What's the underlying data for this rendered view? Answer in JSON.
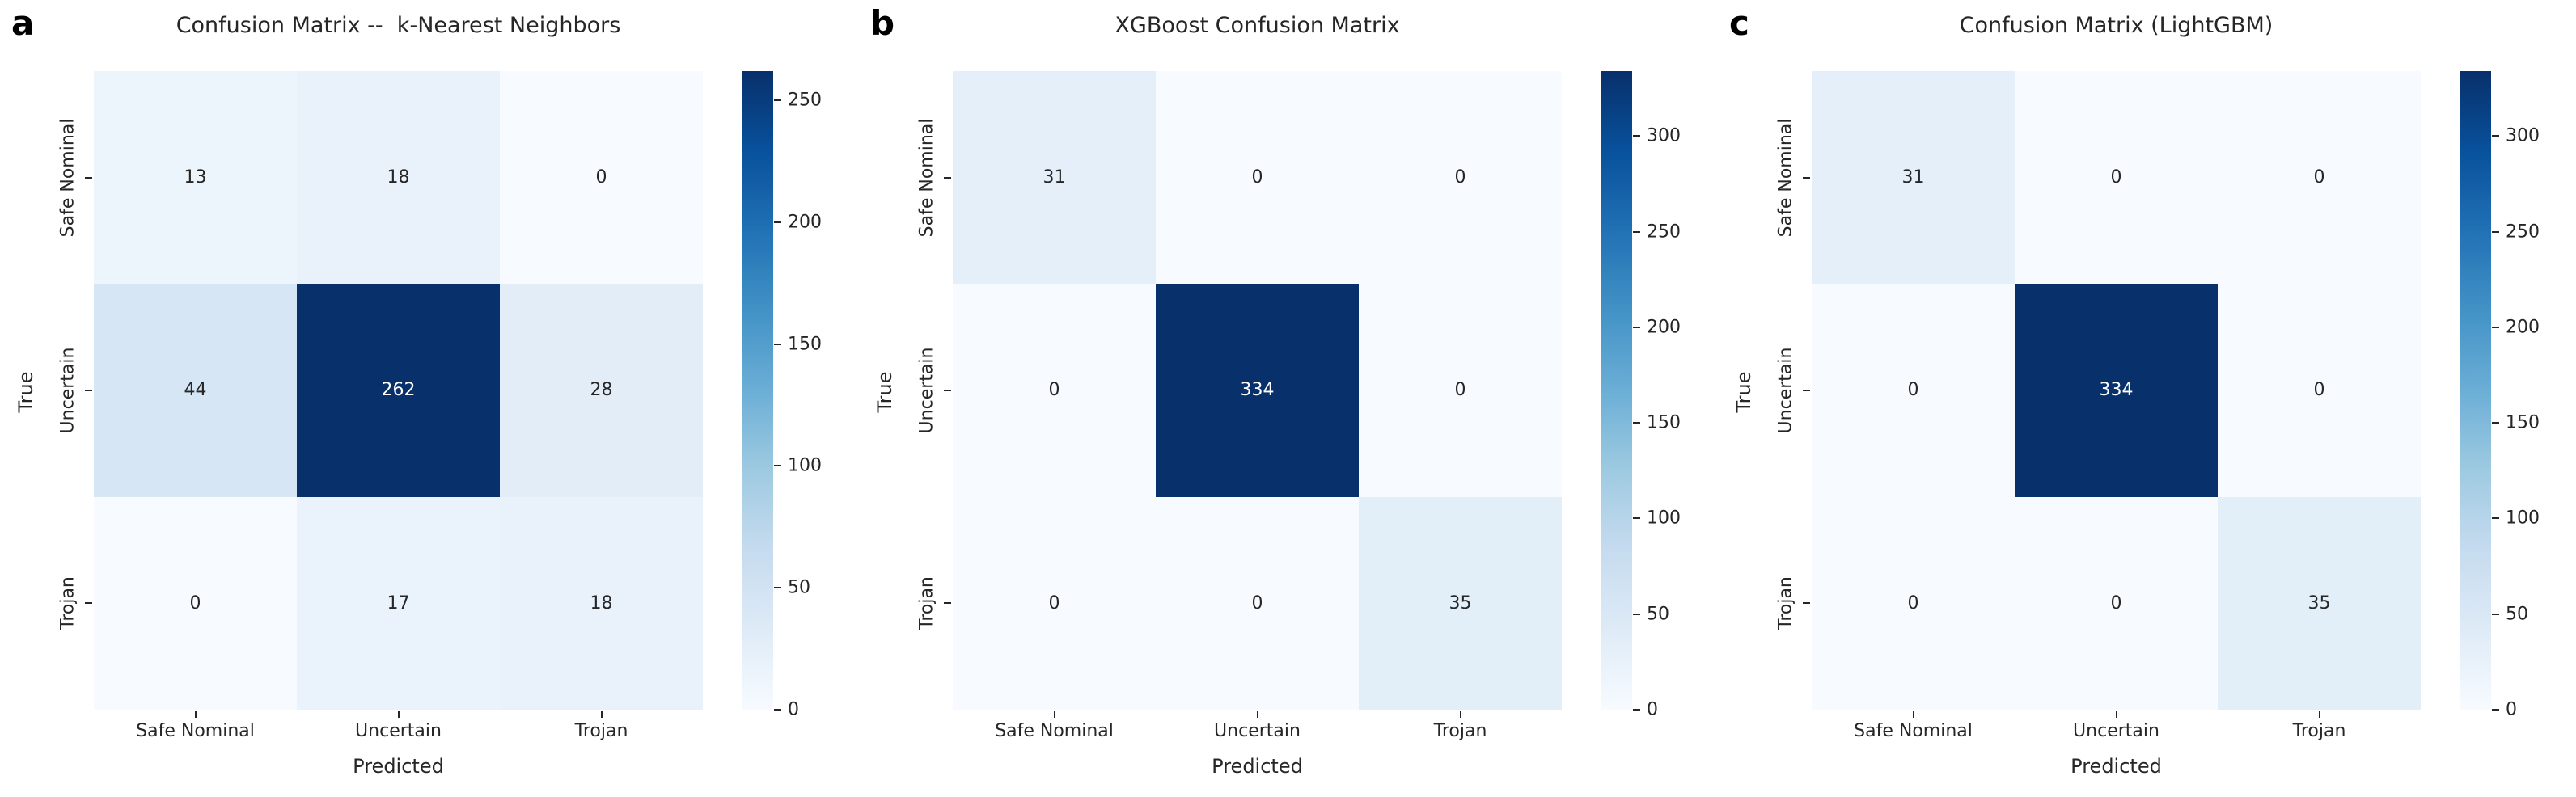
{
  "figure": {
    "background": "#ffffff",
    "text_color": "#262626",
    "annotation_dark_color": "#262626",
    "annotation_light_color": "#ffffff",
    "colormap": "Blues",
    "colormap_low": "#f7fbff",
    "colormap_high": "#08306b"
  },
  "chart_data": [
    {
      "type": "heatmap",
      "panel_label": "a",
      "title": "Confusion Matrix --  k-Nearest Neighbors",
      "xlabel": "Predicted",
      "ylabel": "True",
      "categories": [
        "Safe Nominal",
        "Uncertain",
        "Trojan"
      ],
      "matrix": [
        [
          13,
          18,
          0
        ],
        [
          44,
          262,
          28
        ],
        [
          0,
          17,
          18
        ]
      ],
      "vmin": 0,
      "vmax": 262,
      "colorbar_ticks": [
        0,
        50,
        100,
        150,
        200,
        250
      ],
      "colormap": "Blues",
      "legend_position": "right-colorbar",
      "grid": false
    },
    {
      "type": "heatmap",
      "panel_label": "b",
      "title": "XGBoost Confusion Matrix",
      "xlabel": "Predicted",
      "ylabel": "True",
      "categories": [
        "Safe Nominal",
        "Uncertain",
        "Trojan"
      ],
      "matrix": [
        [
          31,
          0,
          0
        ],
        [
          0,
          334,
          0
        ],
        [
          0,
          0,
          35
        ]
      ],
      "vmin": 0,
      "vmax": 334,
      "colorbar_ticks": [
        0,
        50,
        100,
        150,
        200,
        250,
        300
      ],
      "colormap": "Blues",
      "legend_position": "right-colorbar",
      "grid": false
    },
    {
      "type": "heatmap",
      "panel_label": "c",
      "title": "Confusion Matrix (LightGBM)",
      "xlabel": "Predicted",
      "ylabel": "True",
      "categories": [
        "Safe Nominal",
        "Uncertain",
        "Trojan"
      ],
      "matrix": [
        [
          31,
          0,
          0
        ],
        [
          0,
          334,
          0
        ],
        [
          0,
          0,
          35
        ]
      ],
      "vmin": 0,
      "vmax": 334,
      "colorbar_ticks": [
        0,
        50,
        100,
        150,
        200,
        250,
        300
      ],
      "colormap": "Blues",
      "legend_position": "right-colorbar",
      "grid": false
    }
  ]
}
